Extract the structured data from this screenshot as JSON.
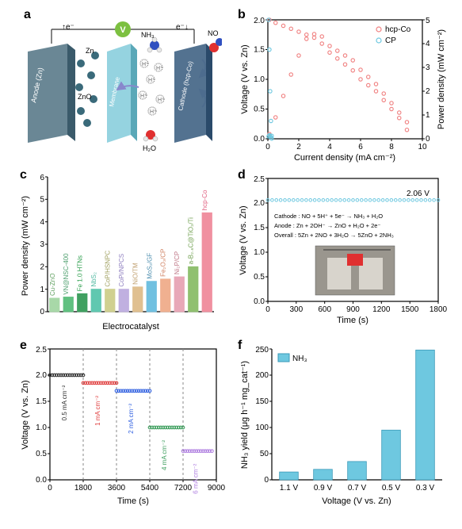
{
  "panels": {
    "a": {
      "label": "a",
      "schematic": {
        "anode_label": "Anode (Zn)",
        "anode_color": "#5a7a8a",
        "zn_label": "Zn",
        "zno_label": "ZnO",
        "zn_ion_color": "#3a6a7a",
        "membrane_label": "Membrane",
        "membrane_color": "#7ac8d8",
        "cathode_label": "Cathode (hcp-Co)",
        "cathode_color": "#4a6a8a",
        "nh3_label": "NH₃",
        "n_color": "#3050c0",
        "h_color": "#e0e0e0",
        "o_color": "#e03030",
        "no_label": "NO",
        "h2o_label": "H₂O",
        "h_plus_label": "H⁺",
        "voltage_node": "V",
        "voltage_node_color": "#7cc040",
        "electron_up": "↑e⁻",
        "electron_down": "e⁻↓",
        "arrow_color": "#8888aa"
      }
    },
    "b": {
      "label": "b",
      "type": "scatter-line-dual-axis",
      "x_label": "Current density (mA cm⁻²)",
      "y_left_label": "Voltage (V vs. Zn)",
      "y_right_label": "Power density (mW cm⁻²)",
      "xlim": [
        0,
        10
      ],
      "xtick_step": 2,
      "ylim_left": [
        0,
        2.0
      ],
      "ytick_left_step": 0.5,
      "ylim_right": [
        0,
        5
      ],
      "ytick_right_step": 1,
      "legend": [
        {
          "label": "hcp-Co",
          "color": "#f08080",
          "marker": "circle"
        },
        {
          "label": "CP",
          "color": "#6ec8e0",
          "marker": "circle"
        }
      ],
      "series": {
        "hcp_co_voltage": {
          "color": "#f08080",
          "points": [
            [
              0.1,
              2.0
            ],
            [
              0.5,
              1.95
            ],
            [
              1.0,
              1.9
            ],
            [
              1.5,
              1.85
            ],
            [
              2.0,
              1.8
            ],
            [
              2.5,
              1.75
            ],
            [
              3.0,
              1.7
            ],
            [
              3.5,
              1.6
            ],
            [
              4.0,
              1.45
            ],
            [
              4.5,
              1.35
            ],
            [
              5.0,
              1.25
            ],
            [
              5.5,
              1.15
            ],
            [
              6.0,
              1.0
            ],
            [
              6.5,
              0.9
            ],
            [
              7.0,
              0.8
            ],
            [
              7.5,
              0.65
            ],
            [
              8.0,
              0.5
            ],
            [
              8.5,
              0.35
            ],
            [
              9.0,
              0.15
            ]
          ]
        },
        "hcp_co_power": {
          "color": "#f08080",
          "points": [
            [
              0.1,
              0.2
            ],
            [
              0.5,
              0.9
            ],
            [
              1.0,
              1.8
            ],
            [
              1.5,
              2.7
            ],
            [
              2.0,
              3.5
            ],
            [
              2.5,
              4.2
            ],
            [
              3.0,
              4.4
            ],
            [
              3.5,
              4.3
            ],
            [
              4.0,
              3.9
            ],
            [
              4.5,
              3.7
            ],
            [
              5.0,
              3.5
            ],
            [
              5.5,
              3.3
            ],
            [
              6.0,
              2.9
            ],
            [
              6.5,
              2.6
            ],
            [
              7.0,
              2.3
            ],
            [
              7.5,
              1.9
            ],
            [
              8.0,
              1.5
            ],
            [
              8.5,
              1.1
            ],
            [
              9.0,
              0.7
            ]
          ]
        },
        "cp_voltage": {
          "color": "#6ec8e0",
          "points": [
            [
              0.05,
              2.0
            ],
            [
              0.1,
              1.5
            ],
            [
              0.15,
              0.8
            ],
            [
              0.2,
              0.3
            ],
            [
              0.25,
              0.05
            ]
          ]
        },
        "cp_power": {
          "color": "#6ec8e0",
          "points": [
            [
              0.05,
              0.1
            ],
            [
              0.1,
              0.15
            ],
            [
              0.15,
              0.12
            ],
            [
              0.2,
              0.06
            ],
            [
              0.25,
              0.01
            ]
          ]
        }
      },
      "background": "#ffffff",
      "border_color": "#000000"
    },
    "c": {
      "label": "c",
      "type": "bar",
      "x_label": "Electrocatalyst",
      "y_label": "Power density (mW cm⁻²)",
      "ylim": [
        0,
        6
      ],
      "ytick_step": 1,
      "categories": [
        "Cu-ZnO",
        "VN@NSC-400",
        "Fe 1.0 HTNs",
        "NbS₂",
        "CoP/HSNPC",
        "CoPi/NPCS",
        "NiO/TM",
        "MoS₂/GF",
        "Fe₂O₃/CP",
        "Ni₂P/CP",
        "a-B₂.₆C@TiO₂/Ti",
        "hcp-Co"
      ],
      "values": [
        0.6,
        0.65,
        0.8,
        1.0,
        1.0,
        1.0,
        1.1,
        1.35,
        1.45,
        1.55,
        2.0,
        4.4
      ],
      "bar_colors": [
        "#a8d8a8",
        "#60c080",
        "#40a060",
        "#60c8b0",
        "#d0d090",
        "#c0b0e0",
        "#e0c090",
        "#70c0e0",
        "#f0b090",
        "#e8a8b8",
        "#90c070",
        "#f090a0"
      ],
      "text_colors": [
        "#60a060",
        "#50a070",
        "#30a050",
        "#50b8a0",
        "#a0a060",
        "#9080c0",
        "#c0a070",
        "#5090b0",
        "#d08060",
        "#c07888",
        "#70a050",
        "#e06080"
      ],
      "bar_width": 0.7,
      "background": "#ffffff",
      "label_fontsize": 9
    },
    "d": {
      "label": "d",
      "type": "line",
      "x_label": "Time (s)",
      "y_label": "Voltage (V vs. Zn)",
      "xlim": [
        0,
        1800
      ],
      "xtick_step": 300,
      "ylim": [
        0,
        2.5
      ],
      "ytick_step": 0.5,
      "annotation": "2.06 V",
      "line_color": "#6ec8e0",
      "line_value": 2.06,
      "reactions": [
        "Cathode : NO + 5H⁺ + 5e⁻ → NH₃ + H₂O",
        "Anode : Zn + 2OH⁻ → ZnO + H₂O + 2e⁻",
        "Overall : 5Zn + 2NO + 3H₂O → 5ZnO + 2NH₃"
      ],
      "inset_photo": {
        "bg": "#888888"
      },
      "background": "#ffffff"
    },
    "e": {
      "label": "e",
      "type": "step-line",
      "x_label": "Time (s)",
      "y_label": "Voltage (V vs. Zn)",
      "xlim": [
        0,
        9000
      ],
      "xtick_step": 1800,
      "ylim": [
        0,
        2.5
      ],
      "ytick_step": 0.5,
      "steps": [
        {
          "range": [
            0,
            1800
          ],
          "value": 2.0,
          "label": "0.5 mA cm⁻²",
          "color": "#303030"
        },
        {
          "range": [
            1800,
            3600
          ],
          "value": 1.85,
          "label": "1 mA cm⁻²",
          "color": "#e04040"
        },
        {
          "range": [
            3600,
            5400
          ],
          "value": 1.7,
          "label": "2 mA cm⁻²",
          "color": "#3060e0"
        },
        {
          "range": [
            5400,
            7200
          ],
          "value": 1.0,
          "label": "4 mA cm⁻²",
          "color": "#40a060"
        },
        {
          "range": [
            7200,
            8800
          ],
          "value": 0.55,
          "label": "6 mA cm⁻²",
          "color": "#b080e0"
        }
      ],
      "dash_color": "#888888",
      "background": "#ffffff"
    },
    "f": {
      "label": "f",
      "type": "bar",
      "x_label": "Voltage (V vs. Zn)",
      "y_label": "NH₃ yield (μg h⁻¹ mg_cat⁻¹)",
      "categories": [
        "1.1 V",
        "0.9 V",
        "0.7 V",
        "0.5 V",
        "0.3 V"
      ],
      "values": [
        15,
        20,
        35,
        95,
        248
      ],
      "ylim": [
        0,
        250
      ],
      "ytick_step": 50,
      "bar_color": "#6ec8e0",
      "legend_label": "NH₃",
      "bar_width": 0.55,
      "background": "#ffffff"
    }
  }
}
